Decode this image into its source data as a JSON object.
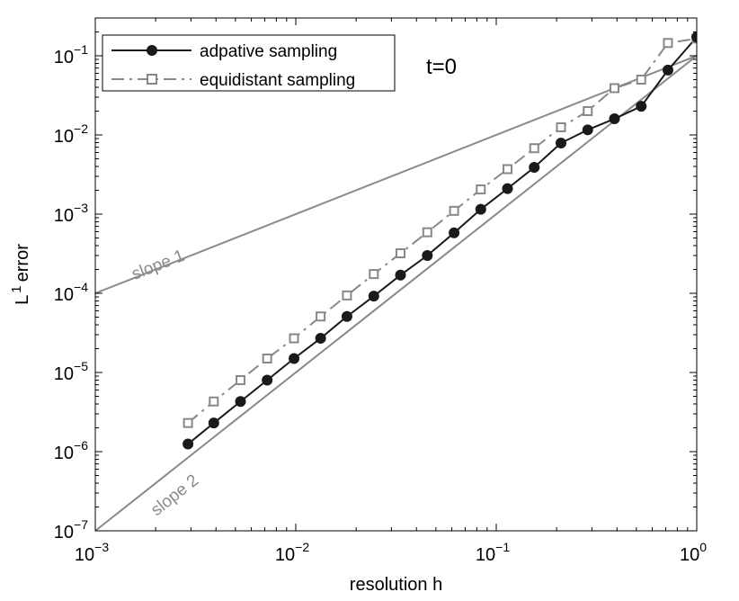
{
  "chart_data": {
    "type": "line",
    "title": "",
    "xlabel": "resolution h",
    "ylabel_main": "L",
    "ylabel_super": "1",
    "ylabel_rest": "error",
    "xscale": "log",
    "yscale": "log",
    "xlim": [
      0.001,
      1
    ],
    "ylim": [
      1e-07,
      0.3
    ],
    "x_ticks": [
      {
        "value": 0.001,
        "base": "10",
        "exp": "−3"
      },
      {
        "value": 0.01,
        "base": "10",
        "exp": "−2"
      },
      {
        "value": 0.1,
        "base": "10",
        "exp": "−1"
      },
      {
        "value": 1,
        "base": "10",
        "exp": "0"
      }
    ],
    "y_ticks": [
      {
        "value": 1e-07,
        "base": "10",
        "exp": "−7"
      },
      {
        "value": 1e-06,
        "base": "10",
        "exp": "−6"
      },
      {
        "value": 1e-05,
        "base": "10",
        "exp": "−5"
      },
      {
        "value": 0.0001,
        "base": "10",
        "exp": "−4"
      },
      {
        "value": 0.001,
        "base": "10",
        "exp": "−3"
      },
      {
        "value": 0.01,
        "base": "10",
        "exp": "−2"
      },
      {
        "value": 0.1,
        "base": "10",
        "exp": "−1"
      }
    ],
    "grid": false,
    "legend_position": "top-left",
    "series": [
      {
        "name": "adpative sampling",
        "color": "#1a1a1a",
        "line_style": "solid",
        "marker": "filled-circle",
        "x": [
          0.0029,
          0.0039,
          0.0053,
          0.0072,
          0.0098,
          0.0133,
          0.018,
          0.0245,
          0.0333,
          0.0453,
          0.0616,
          0.0837,
          0.1138,
          0.1547,
          0.2103,
          0.2859,
          0.3887,
          0.5285,
          0.7184,
          1.0
        ],
        "y": [
          1.25e-06,
          2.3e-06,
          4.3e-06,
          8e-06,
          1.5e-05,
          2.7e-05,
          5.1e-05,
          9.2e-05,
          0.00017,
          0.0003,
          0.00058,
          0.00115,
          0.0021,
          0.0039,
          0.0079,
          0.0116,
          0.016,
          0.023,
          0.066,
          0.172
        ]
      },
      {
        "name": "equidistant sampling",
        "color": "#888888",
        "line_style": "dash-dot",
        "marker": "open-square",
        "x": [
          0.0029,
          0.0039,
          0.0053,
          0.0072,
          0.0098,
          0.0133,
          0.018,
          0.0245,
          0.0333,
          0.0453,
          0.0616,
          0.0837,
          0.1138,
          0.1547,
          0.2103,
          0.2859,
          0.3887,
          0.5285,
          0.7184,
          1.0
        ],
        "y": [
          2.3e-06,
          4.3e-06,
          8e-06,
          1.5e-05,
          2.7e-05,
          5.1e-05,
          9.4e-05,
          0.000175,
          0.00032,
          0.00059,
          0.0011,
          0.00205,
          0.0037,
          0.0068,
          0.0125,
          0.02,
          0.039,
          0.05,
          0.145,
          0.165
        ]
      }
    ],
    "reference_lines": [
      {
        "name": "slope 1",
        "x": [
          0.001,
          1
        ],
        "y": [
          0.0001,
          0.1
        ],
        "color": "#8a8a8a"
      },
      {
        "name": "slope 2",
        "x": [
          0.001,
          1
        ],
        "y": [
          1e-07,
          0.1
        ],
        "color": "#8a8a8a"
      }
    ],
    "annotations": {
      "time_label": "t=0",
      "slope1_label": "slope 1",
      "slope2_label": "slope 2"
    }
  }
}
